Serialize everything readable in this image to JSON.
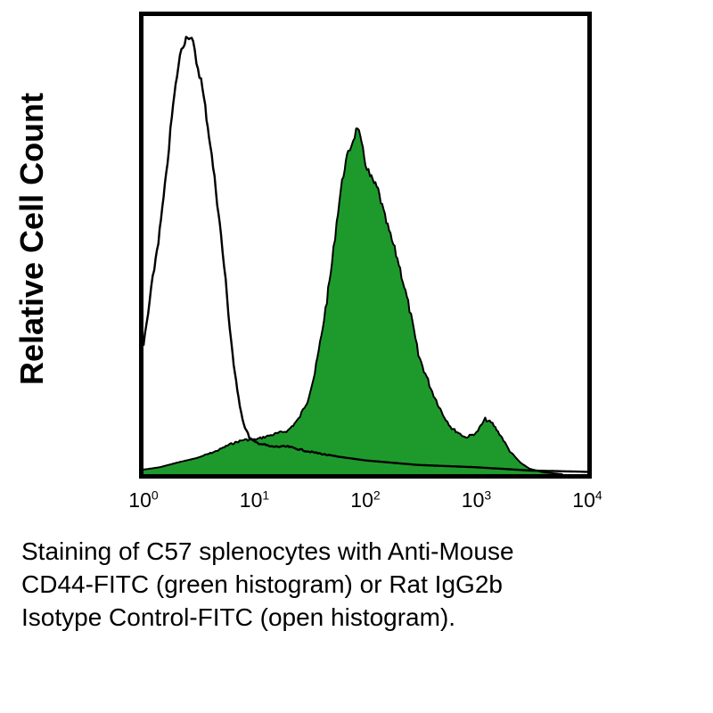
{
  "chart_data": {
    "type": "area",
    "ylabel": "Relative Cell Count",
    "xscale": "log",
    "xlim": [
      1,
      10000
    ],
    "ylim": [
      0,
      100
    ],
    "x_ticks": [
      {
        "base": "10",
        "exp": "0"
      },
      {
        "base": "10",
        "exp": "1"
      },
      {
        "base": "10",
        "exp": "2"
      },
      {
        "base": "10",
        "exp": "3"
      },
      {
        "base": "10",
        "exp": "4"
      }
    ],
    "series": [
      {
        "fill": "#1e9a2c",
        "stroke": "#000000",
        "style": "filled",
        "points": [
          [
            1,
            1
          ],
          [
            1.4,
            1.5
          ],
          [
            2,
            2.5
          ],
          [
            3,
            3.5
          ],
          [
            4.5,
            5
          ],
          [
            6,
            6.5
          ],
          [
            8,
            7.5
          ],
          [
            10,
            7.5
          ],
          [
            14,
            8.5
          ],
          [
            20,
            9.5
          ],
          [
            25,
            12
          ],
          [
            30,
            16
          ],
          [
            35,
            22
          ],
          [
            40,
            30
          ],
          [
            45,
            38
          ],
          [
            50,
            46
          ],
          [
            55,
            55
          ],
          [
            60,
            62
          ],
          [
            65,
            67
          ],
          [
            70,
            70
          ],
          [
            75,
            72
          ],
          [
            80,
            74
          ],
          [
            85,
            76
          ],
          [
            90,
            73
          ],
          [
            100,
            68
          ],
          [
            110,
            65
          ],
          [
            130,
            62
          ],
          [
            150,
            56
          ],
          [
            200,
            46
          ],
          [
            250,
            36
          ],
          [
            300,
            26
          ],
          [
            400,
            18
          ],
          [
            500,
            13
          ],
          [
            600,
            10
          ],
          [
            800,
            8
          ],
          [
            1000,
            9
          ],
          [
            1200,
            12
          ],
          [
            1400,
            11
          ],
          [
            1700,
            8
          ],
          [
            2000,
            5
          ],
          [
            2500,
            2.5
          ],
          [
            3000,
            1.2
          ],
          [
            4000,
            0.4
          ],
          [
            6000,
            0
          ]
        ]
      },
      {
        "fill": "none",
        "stroke": "#000000",
        "style": "open",
        "points": [
          [
            1,
            28
          ],
          [
            1.1,
            35
          ],
          [
            1.25,
            45
          ],
          [
            1.4,
            53
          ],
          [
            1.6,
            65
          ],
          [
            1.8,
            78
          ],
          [
            2,
            87
          ],
          [
            2.2,
            93
          ],
          [
            2.5,
            96
          ],
          [
            2.8,
            94
          ],
          [
            3,
            90
          ],
          [
            3.3,
            86
          ],
          [
            3.6,
            80
          ],
          [
            4,
            72
          ],
          [
            4.5,
            62
          ],
          [
            5,
            52
          ],
          [
            5.5,
            42
          ],
          [
            6,
            32
          ],
          [
            6.5,
            24
          ],
          [
            7,
            18
          ],
          [
            8,
            11
          ],
          [
            9,
            8
          ],
          [
            10,
            7
          ],
          [
            12,
            6.5
          ],
          [
            14,
            6
          ],
          [
            20,
            6
          ],
          [
            30,
            5
          ],
          [
            50,
            4
          ],
          [
            100,
            3
          ],
          [
            300,
            2
          ],
          [
            1000,
            1.5
          ],
          [
            3000,
            0.8
          ],
          [
            10000,
            0.5
          ]
        ]
      }
    ]
  },
  "caption": {
    "line1": "Staining of C57 splenocytes with Anti-Mouse",
    "line2": "CD44-FITC (green histogram) or Rat IgG2b",
    "line3": "Isotype Control-FITC (open histogram)."
  }
}
